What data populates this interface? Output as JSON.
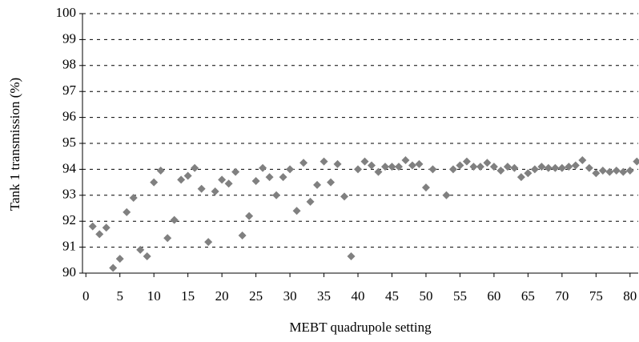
{
  "chart_data": {
    "type": "scatter",
    "xlabel": "MEBT quadrupole setting",
    "ylabel": "Tank 1 transmission (%)",
    "x": [
      1,
      2,
      3,
      4,
      5,
      6,
      7,
      8,
      9,
      10,
      11,
      12,
      13,
      14,
      15,
      16,
      17,
      18,
      19,
      20,
      21,
      22,
      23,
      24,
      25,
      26,
      27,
      28,
      29,
      30,
      31,
      32,
      33,
      34,
      35,
      36,
      37,
      38,
      39,
      40,
      41,
      42,
      43,
      44,
      45,
      46,
      47,
      48,
      49,
      50,
      51,
      53,
      54,
      55,
      56,
      57,
      58,
      59,
      60,
      61,
      62,
      63,
      64,
      65,
      66,
      67,
      68,
      69,
      70,
      71,
      72,
      73,
      74,
      75,
      76,
      77,
      78,
      79,
      80,
      81
    ],
    "values": [
      91.8,
      91.5,
      91.75,
      90.2,
      90.55,
      92.35,
      92.9,
      90.9,
      90.65,
      93.5,
      93.95,
      91.35,
      92.05,
      93.6,
      93.75,
      94.05,
      93.25,
      91.2,
      93.15,
      93.6,
      93.45,
      93.9,
      91.45,
      92.2,
      93.55,
      94.05,
      93.7,
      93.0,
      93.7,
      94.0,
      92.4,
      94.25,
      92.75,
      93.4,
      94.3,
      93.5,
      94.2,
      92.95,
      90.65,
      94.0,
      94.3,
      94.15,
      93.9,
      94.1,
      94.1,
      94.1,
      94.35,
      94.15,
      94.2,
      93.3,
      94.0,
      93.0,
      94.0,
      94.15,
      94.3,
      94.1,
      94.1,
      94.25,
      94.1,
      93.95,
      94.1,
      94.05,
      93.7,
      93.85,
      94.0,
      94.1,
      94.05,
      94.05,
      94.05,
      94.1,
      94.15,
      94.35,
      94.05,
      93.85,
      93.95,
      93.9,
      93.95,
      93.9,
      93.95,
      94.3
    ],
    "color": "#808080",
    "xlim": [
      -0.5,
      81.2
    ],
    "xticks": [
      0,
      5,
      10,
      15,
      20,
      25,
      30,
      35,
      40,
      45,
      50,
      55,
      60,
      65,
      70,
      75,
      80
    ],
    "ylim": [
      90,
      100
    ],
    "yticks": [
      90,
      91,
      92,
      93,
      94,
      95,
      96,
      97,
      98,
      99,
      100
    ],
    "grid": true
  }
}
